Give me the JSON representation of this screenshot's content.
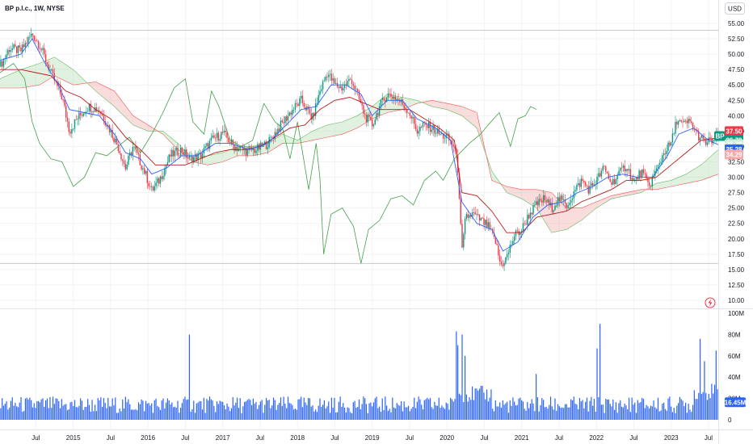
{
  "header": {
    "title": "BP p.l.c., 1W, NYSE",
    "currency": "USD"
  },
  "chart_data": {
    "type": "candlestick",
    "symbol": "BP",
    "price_axis": {
      "ticks": [
        "55.00",
        "52.50",
        "50.00",
        "47.50",
        "45.00",
        "42.50",
        "40.00",
        "37.50",
        "35.00",
        "32.50",
        "30.00",
        "27.50",
        "25.00",
        "22.50",
        "20.00",
        "17.50",
        "15.00",
        "12.50",
        "10.00"
      ],
      "ylim": [
        8.5,
        56.5
      ]
    },
    "volume_axis": {
      "ticks": [
        "100M",
        "80M",
        "60M",
        "40M",
        "20M",
        "0"
      ],
      "ylim": [
        0,
        100
      ]
    },
    "x_labels": [
      {
        "label": "Jul",
        "t": 2014.5
      },
      {
        "label": "2015",
        "t": 2015.0
      },
      {
        "label": "Jul",
        "t": 2015.5
      },
      {
        "label": "2016",
        "t": 2016.0
      },
      {
        "label": "Jul",
        "t": 2016.5
      },
      {
        "label": "2017",
        "t": 2017.0
      },
      {
        "label": "Jul",
        "t": 2017.5
      },
      {
        "label": "2018",
        "t": 2018.0
      },
      {
        "label": "Jul",
        "t": 2018.5
      },
      {
        "label": "2019",
        "t": 2019.0
      },
      {
        "label": "Jul",
        "t": 2019.5
      },
      {
        "label": "2020",
        "t": 2020.0
      },
      {
        "label": "Jul",
        "t": 2020.5
      },
      {
        "label": "2021",
        "t": 2021.0
      },
      {
        "label": "Jul",
        "t": 2021.5
      },
      {
        "label": "2022",
        "t": 2022.0
      },
      {
        "label": "Jul",
        "t": 2022.5
      },
      {
        "label": "2023",
        "t": 2023.0
      },
      {
        "label": "Jul",
        "t": 2023.5
      }
    ],
    "x_range": [
      2014.02,
      2023.63
    ],
    "close_series": [
      [
        2014.02,
        48.0
      ],
      [
        2014.15,
        51.0
      ],
      [
        2014.3,
        50.5
      ],
      [
        2014.45,
        53.3
      ],
      [
        2014.55,
        51.5
      ],
      [
        2014.7,
        47.0
      ],
      [
        2014.85,
        43.0
      ],
      [
        2014.95,
        37.5
      ],
      [
        2015.05,
        39.5
      ],
      [
        2015.2,
        41.5
      ],
      [
        2015.35,
        41.0
      ],
      [
        2015.5,
        37.5
      ],
      [
        2015.6,
        35.0
      ],
      [
        2015.7,
        31.5
      ],
      [
        2015.8,
        35.0
      ],
      [
        2015.95,
        31.0
      ],
      [
        2016.05,
        27.8
      ],
      [
        2016.15,
        29.5
      ],
      [
        2016.3,
        33.5
      ],
      [
        2016.45,
        34.5
      ],
      [
        2016.55,
        33.0
      ],
      [
        2016.7,
        33.5
      ],
      [
        2016.85,
        36.0
      ],
      [
        2017.0,
        37.2
      ],
      [
        2017.15,
        35.0
      ],
      [
        2017.3,
        34.3
      ],
      [
        2017.45,
        34.5
      ],
      [
        2017.6,
        35.5
      ],
      [
        2017.75,
        38.0
      ],
      [
        2017.9,
        40.5
      ],
      [
        2018.05,
        42.5
      ],
      [
        2018.2,
        39.5
      ],
      [
        2018.3,
        44.0
      ],
      [
        2018.4,
        47.0
      ],
      [
        2018.5,
        45.0
      ],
      [
        2018.6,
        44.5
      ],
      [
        2018.72,
        46.0
      ],
      [
        2018.8,
        43.5
      ],
      [
        2018.9,
        40.0
      ],
      [
        2019.0,
        38.5
      ],
      [
        2019.1,
        41.5
      ],
      [
        2019.2,
        43.5
      ],
      [
        2019.3,
        43.0
      ],
      [
        2019.4,
        42.0
      ],
      [
        2019.5,
        40.5
      ],
      [
        2019.6,
        37.5
      ],
      [
        2019.7,
        38.5
      ],
      [
        2019.8,
        38.0
      ],
      [
        2019.9,
        37.0
      ],
      [
        2020.0,
        36.5
      ],
      [
        2020.1,
        35.0
      ],
      [
        2020.15,
        31.0
      ],
      [
        2020.2,
        17.5
      ],
      [
        2020.25,
        23.5
      ],
      [
        2020.35,
        24.0
      ],
      [
        2020.45,
        23.0
      ],
      [
        2020.55,
        22.0
      ],
      [
        2020.65,
        19.5
      ],
      [
        2020.72,
        15.6
      ],
      [
        2020.8,
        17.0
      ],
      [
        2020.9,
        20.5
      ],
      [
        2021.0,
        21.5
      ],
      [
        2021.1,
        24.0
      ],
      [
        2021.2,
        25.5
      ],
      [
        2021.3,
        26.5
      ],
      [
        2021.4,
        25.0
      ],
      [
        2021.5,
        26.5
      ],
      [
        2021.6,
        25.5
      ],
      [
        2021.7,
        27.5
      ],
      [
        2021.8,
        29.5
      ],
      [
        2021.9,
        28.0
      ],
      [
        2022.0,
        29.5
      ],
      [
        2022.1,
        31.5
      ],
      [
        2022.2,
        29.0
      ],
      [
        2022.3,
        30.5
      ],
      [
        2022.4,
        32.0
      ],
      [
        2022.5,
        29.0
      ],
      [
        2022.6,
        31.0
      ],
      [
        2022.7,
        28.5
      ],
      [
        2022.8,
        31.0
      ],
      [
        2022.9,
        34.0
      ],
      [
        2023.0,
        35.5
      ],
      [
        2023.08,
        39.5
      ],
      [
        2023.15,
        38.5
      ],
      [
        2023.25,
        39.0
      ],
      [
        2023.35,
        37.0
      ],
      [
        2023.45,
        35.5
      ],
      [
        2023.55,
        36.0
      ],
      [
        2023.63,
        36.7
      ]
    ],
    "tenkan_series": [
      [
        2014.02,
        49.0
      ],
      [
        2014.3,
        50.0
      ],
      [
        2014.45,
        52.5
      ],
      [
        2014.6,
        49.0
      ],
      [
        2014.8,
        45.0
      ],
      [
        2014.95,
        41.0
      ],
      [
        2015.15,
        40.5
      ],
      [
        2015.35,
        40.0
      ],
      [
        2015.55,
        37.0
      ],
      [
        2015.7,
        34.0
      ],
      [
        2015.9,
        33.0
      ],
      [
        2016.05,
        30.5
      ],
      [
        2016.25,
        31.5
      ],
      [
        2016.45,
        33.5
      ],
      [
        2016.65,
        33.5
      ],
      [
        2016.9,
        35.5
      ],
      [
        2017.1,
        35.5
      ],
      [
        2017.35,
        34.5
      ],
      [
        2017.6,
        35.5
      ],
      [
        2017.85,
        38.5
      ],
      [
        2018.05,
        41.0
      ],
      [
        2018.25,
        41.5
      ],
      [
        2018.45,
        45.0
      ],
      [
        2018.65,
        45.0
      ],
      [
        2018.85,
        43.5
      ],
      [
        2019.0,
        40.0
      ],
      [
        2019.2,
        42.5
      ],
      [
        2019.4,
        42.5
      ],
      [
        2019.6,
        39.5
      ],
      [
        2019.85,
        38.0
      ],
      [
        2020.05,
        36.0
      ],
      [
        2020.2,
        26.0
      ],
      [
        2020.4,
        22.5
      ],
      [
        2020.6,
        21.5
      ],
      [
        2020.75,
        18.0
      ],
      [
        2020.95,
        19.5
      ],
      [
        2021.15,
        23.5
      ],
      [
        2021.35,
        25.5
      ],
      [
        2021.55,
        26.0
      ],
      [
        2021.75,
        27.5
      ],
      [
        2021.95,
        28.5
      ],
      [
        2022.15,
        30.0
      ],
      [
        2022.35,
        30.5
      ],
      [
        2022.55,
        30.0
      ],
      [
        2022.75,
        30.0
      ],
      [
        2022.95,
        33.5
      ],
      [
        2023.1,
        37.0
      ],
      [
        2023.3,
        38.0
      ],
      [
        2023.5,
        36.0
      ],
      [
        2023.63,
        35.3
      ]
    ],
    "kijun_series": [
      [
        2014.02,
        47.5
      ],
      [
        2014.3,
        47.5
      ],
      [
        2014.5,
        47.0
      ],
      [
        2014.7,
        46.5
      ],
      [
        2014.9,
        44.0
      ],
      [
        2015.1,
        43.0
      ],
      [
        2015.3,
        41.0
      ],
      [
        2015.5,
        39.5
      ],
      [
        2015.7,
        36.5
      ],
      [
        2015.9,
        34.5
      ],
      [
        2016.1,
        32.0
      ],
      [
        2016.3,
        32.0
      ],
      [
        2016.5,
        32.0
      ],
      [
        2016.7,
        33.0
      ],
      [
        2016.9,
        34.0
      ],
      [
        2017.1,
        34.5
      ],
      [
        2017.3,
        34.5
      ],
      [
        2017.5,
        35.0
      ],
      [
        2017.7,
        36.5
      ],
      [
        2017.9,
        38.0
      ],
      [
        2018.1,
        38.5
      ],
      [
        2018.3,
        41.0
      ],
      [
        2018.5,
        42.5
      ],
      [
        2018.7,
        43.0
      ],
      [
        2018.9,
        42.0
      ],
      [
        2019.1,
        41.0
      ],
      [
        2019.3,
        41.0
      ],
      [
        2019.5,
        41.0
      ],
      [
        2019.7,
        39.5
      ],
      [
        2019.9,
        38.0
      ],
      [
        2020.1,
        36.0
      ],
      [
        2020.2,
        27.5
      ],
      [
        2020.4,
        27.0
      ],
      [
        2020.6,
        24.5
      ],
      [
        2020.8,
        21.0
      ],
      [
        2021.0,
        21.0
      ],
      [
        2021.2,
        23.5
      ],
      [
        2021.4,
        24.0
      ],
      [
        2021.6,
        24.5
      ],
      [
        2021.8,
        26.0
      ],
      [
        2022.0,
        27.0
      ],
      [
        2022.2,
        28.0
      ],
      [
        2022.4,
        29.5
      ],
      [
        2022.6,
        29.5
      ],
      [
        2022.8,
        30.0
      ],
      [
        2023.0,
        32.0
      ],
      [
        2023.2,
        34.0
      ],
      [
        2023.4,
        36.0
      ],
      [
        2023.63,
        36.4
      ]
    ],
    "lagging_series": [
      [
        2014.02,
        47.0
      ],
      [
        2014.2,
        48.5
      ],
      [
        2014.35,
        46.0
      ],
      [
        2014.45,
        39.0
      ],
      [
        2014.55,
        35.5
      ],
      [
        2014.7,
        33.0
      ],
      [
        2014.85,
        32.5
      ],
      [
        2015.0,
        28.5
      ],
      [
        2015.15,
        30.0
      ],
      [
        2015.3,
        34.0
      ],
      [
        2015.45,
        33.5
      ],
      [
        2015.6,
        35.0
      ],
      [
        2015.75,
        36.5
      ],
      [
        2015.9,
        34.0
      ],
      [
        2016.05,
        37.0
      ],
      [
        2016.2,
        40.5
      ],
      [
        2016.35,
        44.5
      ],
      [
        2016.5,
        46.0
      ],
      [
        2016.6,
        39.0
      ],
      [
        2016.75,
        37.0
      ],
      [
        2016.85,
        44.0
      ],
      [
        2016.95,
        41.5
      ],
      [
        2017.1,
        36.0
      ],
      [
        2017.25,
        35.0
      ],
      [
        2017.4,
        36.0
      ],
      [
        2017.55,
        42.0
      ],
      [
        2017.7,
        39.0
      ],
      [
        2017.8,
        38.0
      ],
      [
        2017.9,
        33.0
      ],
      [
        2018.0,
        39.0
      ],
      [
        2018.15,
        28.0
      ],
      [
        2018.25,
        35.5
      ],
      [
        2018.3,
        30.0
      ],
      [
        2018.35,
        17.5
      ],
      [
        2018.45,
        24.0
      ],
      [
        2018.6,
        25.0
      ],
      [
        2018.75,
        22.0
      ],
      [
        2018.85,
        16.0
      ],
      [
        2018.95,
        21.5
      ],
      [
        2019.1,
        23.0
      ],
      [
        2019.25,
        26.5
      ],
      [
        2019.4,
        27.0
      ],
      [
        2019.55,
        25.5
      ],
      [
        2019.7,
        29.5
      ],
      [
        2019.85,
        31.0
      ],
      [
        2019.95,
        29.5
      ],
      [
        2020.1,
        33.0
      ],
      [
        2020.3,
        35.5
      ],
      [
        2020.45,
        37.0
      ],
      [
        2020.55,
        38.5
      ],
      [
        2020.7,
        40.5
      ],
      [
        2020.85,
        35.0
      ],
      [
        2020.95,
        39.5
      ],
      [
        2021.05,
        40.0
      ],
      [
        2021.12,
        41.5
      ],
      [
        2021.2,
        41.0
      ]
    ],
    "cloud_senkou_a": [
      [
        2014.02,
        46.0
      ],
      [
        2014.3,
        47.5
      ],
      [
        2014.55,
        48.5
      ],
      [
        2014.75,
        49.5
      ],
      [
        2015.0,
        47.5
      ],
      [
        2015.3,
        44.0
      ],
      [
        2015.55,
        41.5
      ],
      [
        2015.8,
        38.5
      ],
      [
        2016.0,
        37.5
      ],
      [
        2016.2,
        37.5
      ],
      [
        2016.4,
        35.5
      ],
      [
        2016.6,
        33.0
      ],
      [
        2016.8,
        33.5
      ],
      [
        2017.0,
        34.0
      ],
      [
        2017.2,
        35.0
      ],
      [
        2017.4,
        35.0
      ],
      [
        2017.6,
        35.5
      ],
      [
        2017.8,
        37.0
      ],
      [
        2018.0,
        36.0
      ],
      [
        2018.2,
        37.5
      ],
      [
        2018.4,
        38.5
      ],
      [
        2018.6,
        39.0
      ],
      [
        2018.8,
        40.0
      ],
      [
        2019.0,
        41.5
      ],
      [
        2019.2,
        43.5
      ],
      [
        2019.4,
        43.0
      ],
      [
        2019.6,
        42.5
      ],
      [
        2019.8,
        41.5
      ],
      [
        2020.0,
        41.0
      ],
      [
        2020.2,
        40.0
      ],
      [
        2020.4,
        38.0
      ],
      [
        2020.6,
        31.0
      ],
      [
        2020.8,
        27.5
      ],
      [
        2021.0,
        26.5
      ],
      [
        2021.2,
        25.0
      ],
      [
        2021.4,
        21.0
      ],
      [
        2021.6,
        21.5
      ],
      [
        2021.8,
        23.0
      ],
      [
        2022.0,
        25.0
      ],
      [
        2022.2,
        26.5
      ],
      [
        2022.4,
        27.0
      ],
      [
        2022.6,
        27.5
      ],
      [
        2022.8,
        29.0
      ],
      [
        2023.0,
        29.5
      ],
      [
        2023.2,
        30.5
      ],
      [
        2023.4,
        32.0
      ],
      [
        2023.63,
        34.5
      ]
    ],
    "cloud_senkou_b": [
      [
        2014.02,
        44.5
      ],
      [
        2014.3,
        44.5
      ],
      [
        2014.55,
        45.0
      ],
      [
        2014.75,
        46.5
      ],
      [
        2015.0,
        45.0
      ],
      [
        2015.3,
        45.5
      ],
      [
        2015.55,
        44.0
      ],
      [
        2015.8,
        40.0
      ],
      [
        2016.0,
        38.5
      ],
      [
        2016.2,
        37.0
      ],
      [
        2016.4,
        34.5
      ],
      [
        2016.6,
        32.5
      ],
      [
        2016.8,
        32.0
      ],
      [
        2017.0,
        32.5
      ],
      [
        2017.2,
        33.5
      ],
      [
        2017.4,
        33.5
      ],
      [
        2017.6,
        34.0
      ],
      [
        2017.8,
        35.5
      ],
      [
        2018.0,
        35.5
      ],
      [
        2018.2,
        36.0
      ],
      [
        2018.4,
        36.5
      ],
      [
        2018.6,
        37.0
      ],
      [
        2018.8,
        38.0
      ],
      [
        2019.0,
        39.5
      ],
      [
        2019.2,
        40.5
      ],
      [
        2019.4,
        41.0
      ],
      [
        2019.6,
        42.0
      ],
      [
        2019.8,
        42.5
      ],
      [
        2020.0,
        42.0
      ],
      [
        2020.2,
        41.5
      ],
      [
        2020.4,
        40.5
      ],
      [
        2020.6,
        29.5
      ],
      [
        2020.8,
        28.5
      ],
      [
        2021.0,
        28.0
      ],
      [
        2021.2,
        28.0
      ],
      [
        2021.4,
        27.5
      ],
      [
        2021.6,
        25.0
      ],
      [
        2021.8,
        25.0
      ],
      [
        2022.0,
        26.0
      ],
      [
        2022.2,
        27.0
      ],
      [
        2022.4,
        27.5
      ],
      [
        2022.6,
        28.0
      ],
      [
        2022.8,
        28.0
      ],
      [
        2023.0,
        28.5
      ],
      [
        2023.2,
        29.0
      ],
      [
        2023.4,
        29.5
      ],
      [
        2023.63,
        30.5
      ]
    ],
    "reference_lines": [
      53.9,
      16.0
    ],
    "volume_spikes": [
      [
        2016.55,
        80
      ],
      [
        2020.12,
        83
      ],
      [
        2020.2,
        80
      ],
      [
        2022.05,
        90
      ],
      [
        2023.38,
        76
      ],
      [
        2023.6,
        65
      ],
      [
        2020.15,
        70
      ],
      [
        2022.0,
        67
      ],
      [
        2021.2,
        43
      ],
      [
        2020.25,
        60
      ],
      [
        2023.45,
        55
      ]
    ],
    "price_tags": [
      {
        "label": "BP",
        "value": "36.70",
        "price": 36.7,
        "color": "#089981"
      },
      {
        "label": "",
        "value": "37.50",
        "price": 37.5,
        "color": "#f23645"
      },
      {
        "label": "",
        "value": "36.70",
        "price": 36.05,
        "color": "#089981"
      },
      {
        "label": "",
        "value": "36.39",
        "price": 35.4,
        "color": "#d6ecd7"
      },
      {
        "label": "",
        "value": "35.28",
        "price": 34.55,
        "color": "#2962ff"
      },
      {
        "label": "",
        "value": "34.29",
        "price": 33.7,
        "color": "#f7a9a8"
      }
    ],
    "volume_tag": {
      "value": "16.45M",
      "level": 16.45,
      "color": "#2962ff"
    },
    "colors": {
      "up": "#089981",
      "down": "#f23645",
      "volume": "#2962ff",
      "tenkan": "#2962ff",
      "kijun": "#b71c1c",
      "lagging": "#43a047",
      "cloud_up": "#a5d6a7",
      "cloud_down": "#ef9a9a"
    }
  }
}
